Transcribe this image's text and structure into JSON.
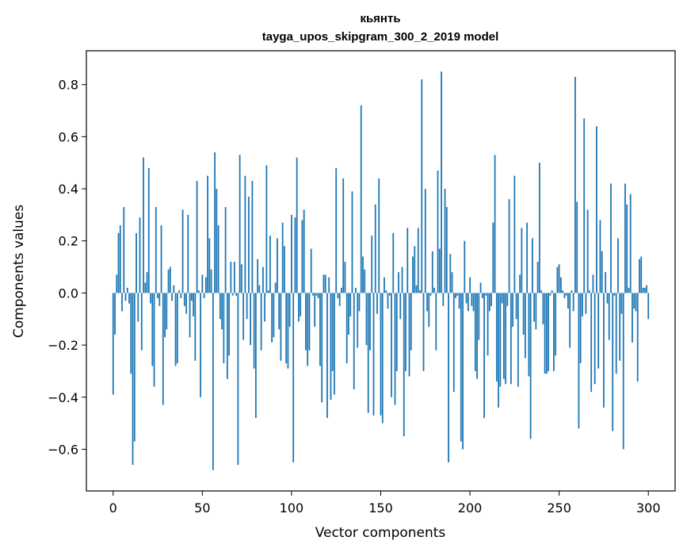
{
  "chart_data": {
    "type": "bar",
    "title": "кьянть",
    "subtitle": "tayga_upos_skipgram_300_2_2019 model",
    "xlabel": "Vector components",
    "ylabel": "Components values",
    "xlim": [
      -15,
      315
    ],
    "ylim": [
      -0.76,
      0.93
    ],
    "xticks": [
      0,
      50,
      100,
      150,
      200,
      250,
      300
    ],
    "yticks": [
      -0.6,
      -0.4,
      -0.2,
      0.0,
      0.2,
      0.4,
      0.6,
      0.8
    ],
    "grid": false,
    "bar_color": "#1f77b4",
    "values": [
      -0.39,
      -0.16,
      0.07,
      0.23,
      0.26,
      -0.07,
      0.33,
      -0.03,
      0.02,
      -0.04,
      -0.31,
      -0.66,
      -0.57,
      0.23,
      -0.11,
      0.29,
      -0.22,
      0.52,
      0.04,
      0.08,
      0.48,
      -0.04,
      -0.28,
      -0.36,
      0.33,
      -0.02,
      -0.05,
      0.26,
      -0.43,
      -0.17,
      -0.14,
      0.09,
      0.1,
      -0.03,
      0.03,
      -0.28,
      -0.27,
      0.01,
      -0.02,
      0.32,
      -0.05,
      -0.08,
      0.3,
      -0.17,
      -0.03,
      -0.09,
      -0.26,
      0.43,
      0.01,
      -0.4,
      0.07,
      -0.02,
      0.06,
      0.45,
      0.21,
      0.09,
      -0.68,
      0.54,
      0.4,
      0.26,
      -0.1,
      -0.14,
      -0.27,
      0.33,
      -0.33,
      -0.24,
      0.12,
      -0.01,
      0.12,
      -0.01,
      -0.66,
      0.53,
      0.11,
      -0.18,
      0.45,
      -0.1,
      0.37,
      -0.2,
      0.43,
      -0.29,
      -0.48,
      0.13,
      0.03,
      -0.22,
      0.1,
      -0.11,
      0.49,
      0.01,
      0.22,
      -0.19,
      -0.17,
      0.04,
      0.21,
      -0.14,
      -0.26,
      0.27,
      0.18,
      -0.27,
      -0.29,
      -0.13,
      0.3,
      -0.65,
      0.29,
      0.52,
      -0.11,
      -0.09,
      0.28,
      0.32,
      -0.22,
      -0.28,
      -0.22,
      0.17,
      -0.01,
      -0.13,
      -0.01,
      -0.02,
      -0.28,
      -0.42,
      0.07,
      0.07,
      -0.48,
      0.06,
      -0.41,
      -0.3,
      -0.39,
      0.48,
      -0.02,
      -0.05,
      0.02,
      0.44,
      0.12,
      -0.27,
      -0.16,
      -0.09,
      0.39,
      -0.37,
      0.02,
      -0.21,
      -0.07,
      0.72,
      0.14,
      0.09,
      -0.2,
      -0.46,
      -0.22,
      0.22,
      -0.47,
      0.34,
      -0.08,
      0.44,
      -0.47,
      -0.5,
      0.06,
      0.01,
      -0.06,
      -0.01,
      -0.4,
      0.23,
      -0.43,
      -0.3,
      0.08,
      -0.1,
      0.1,
      -0.55,
      -0.3,
      0.25,
      -0.32,
      -0.22,
      0.14,
      0.18,
      0.03,
      0.25,
      0.01,
      0.82,
      -0.3,
      0.4,
      -0.07,
      -0.13,
      -0.01,
      0.16,
      0.02,
      -0.22,
      0.47,
      0.17,
      0.85,
      -0.05,
      0.4,
      0.33,
      -0.65,
      0.15,
      0.08,
      -0.38,
      -0.02,
      -0.01,
      -0.06,
      -0.57,
      -0.6,
      0.2,
      -0.04,
      -0.07,
      0.06,
      -0.05,
      -0.07,
      -0.3,
      -0.33,
      -0.18,
      0.04,
      -0.02,
      -0.48,
      -0.01,
      -0.24,
      -0.07,
      -0.05,
      0.27,
      0.53,
      -0.34,
      -0.44,
      -0.36,
      -0.04,
      -0.33,
      -0.35,
      -0.05,
      0.36,
      -0.35,
      -0.13,
      0.45,
      -0.1,
      -0.36,
      0.07,
      0.25,
      -0.16,
      -0.25,
      0.27,
      -0.32,
      -0.56,
      0.21,
      -0.11,
      -0.14,
      0.12,
      0.5,
      0.01,
      -0.12,
      -0.31,
      -0.31,
      -0.3,
      -0.01,
      0.01,
      -0.3,
      -0.24,
      0.1,
      0.11,
      0.06,
      0.01,
      -0.02,
      -0.01,
      -0.06,
      -0.21,
      0.01,
      -0.07,
      0.83,
      0.35,
      -0.52,
      -0.27,
      -0.09,
      0.67,
      -0.08,
      0.32,
      0.01,
      -0.38,
      0.07,
      -0.35,
      0.64,
      -0.29,
      0.28,
      0.16,
      -0.44,
      0.08,
      -0.04,
      -0.18,
      0.42,
      -0.53,
      -0.01,
      -0.31,
      0.21,
      -0.26,
      -0.08,
      -0.6,
      0.42,
      0.34,
      0.02,
      0.38,
      -0.19,
      -0.06,
      -0.07,
      -0.34,
      0.13,
      0.14,
      0.02,
      0.02,
      0.03,
      -0.1
    ]
  }
}
